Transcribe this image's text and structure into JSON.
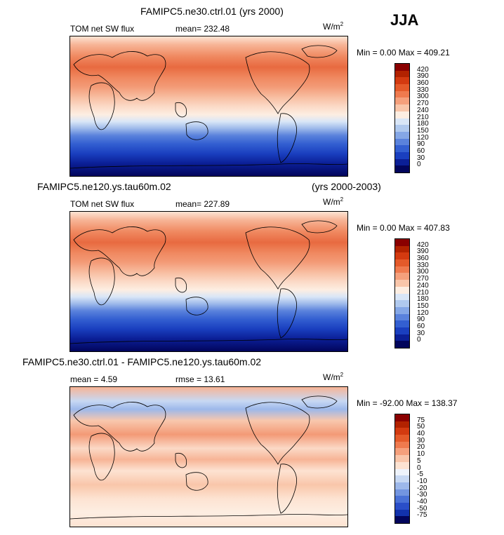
{
  "season": "JJA",
  "panels": [
    {
      "id": "p1",
      "title": "FAMIPC5.ne30.ctrl.01 (yrs 2000)",
      "title_right": "",
      "variable": "TOM net SW flux",
      "stat1": "mean= 232.48",
      "stat2": "",
      "units": "W/m",
      "units_exp": "2",
      "minmax": "Min =    0.00  Max = 409.21",
      "colorbar_ticks": [
        "420",
        "390",
        "360",
        "330",
        "300",
        "270",
        "240",
        "210",
        "180",
        "150",
        "120",
        "90",
        "60",
        "30",
        "0"
      ]
    },
    {
      "id": "p2",
      "title": "FAMIPC5.ne120.ys.tau60m.02",
      "title_right": "(yrs 2000-2003)",
      "variable": "TOM net SW flux",
      "stat1": "mean= 227.89",
      "stat2": "",
      "units": "W/m",
      "units_exp": "2",
      "minmax": "Min =    0.00  Max = 407.83",
      "colorbar_ticks": [
        "420",
        "390",
        "360",
        "330",
        "300",
        "270",
        "240",
        "210",
        "180",
        "150",
        "120",
        "90",
        "60",
        "30",
        "0"
      ]
    },
    {
      "id": "p3",
      "title": "FAMIPC5.ne30.ctrl.01 - FAMIPC5.ne120.ys.tau60m.02",
      "title_right": "",
      "variable": "",
      "stat1": "mean =    4.59",
      "stat2": "rmse =   13.61",
      "units": "W/m",
      "units_exp": "2",
      "minmax": "Min = -92.00  Max = 138.37",
      "colorbar_ticks": [
        "75",
        "50",
        "40",
        "30",
        "20",
        "10",
        "5",
        "0",
        "-5",
        "-10",
        "-20",
        "-30",
        "-40",
        "-50",
        "-75"
      ]
    }
  ],
  "colors": {
    "abs_scale": [
      "#8a0000",
      "#b22200",
      "#d33a10",
      "#e45a2a",
      "#ef7a4e",
      "#f5a07c",
      "#f9c6aa",
      "#fdeee2",
      "#d9e6f7",
      "#b0c9ee",
      "#85a7e6",
      "#5a82dc",
      "#335fd1",
      "#1a3fbf",
      "#0b1f96",
      "#02055c"
    ],
    "diff_scale": [
      "#8a0000",
      "#b22200",
      "#d33a10",
      "#e45a2a",
      "#ef7a4e",
      "#f5a07c",
      "#f9c6aa",
      "#fde3d2",
      "#eef3fb",
      "#c7d8f3",
      "#9db8ea",
      "#7395e0",
      "#4a71d6",
      "#2a4ec8",
      "#1232ac",
      "#02055c"
    ]
  }
}
